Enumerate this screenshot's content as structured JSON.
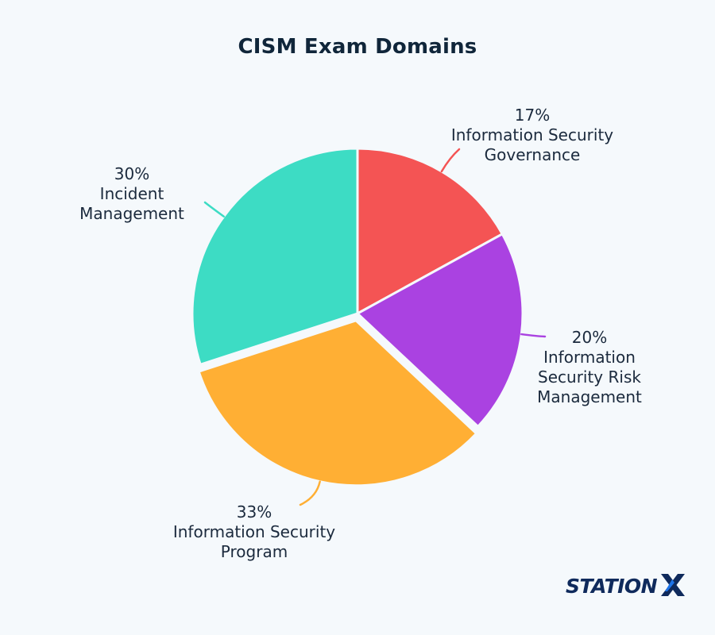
{
  "chart_data": {
    "type": "pie",
    "title": "CISM Exam Domains",
    "slices": [
      {
        "percent_label": "17%",
        "label_lines": [
          "Information Security",
          "Governance"
        ],
        "value": 17,
        "color": "#f45454"
      },
      {
        "percent_label": "20%",
        "label_lines": [
          "Information",
          "Security Risk",
          "Management"
        ],
        "value": 20,
        "color": "#aa42e1"
      },
      {
        "percent_label": "33%",
        "label_lines": [
          "Information Security",
          "Program"
        ],
        "value": 33,
        "color": "#ffaf34"
      },
      {
        "percent_label": "30%",
        "label_lines": [
          "Incident",
          "Management"
        ],
        "value": 30,
        "color": "#3ddcc4"
      }
    ],
    "exploded_slice": "Information Security Program",
    "legend": "none"
  },
  "brand": {
    "logo_text": "STATIONX",
    "text_color": "#0f2a5c",
    "accent_color": "#1e74e8"
  }
}
